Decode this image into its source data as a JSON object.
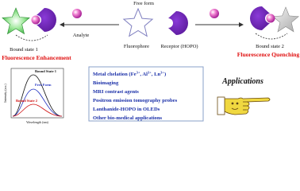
{
  "header": {
    "free_form": "Free form",
    "analyte": "Analyte",
    "fluorophore": "Fluorophore",
    "receptor": "Receptor (HOPO)"
  },
  "bound_state_1": {
    "label": "Bound state 1",
    "effect": "Fluorescence Enhancement"
  },
  "bound_state_2": {
    "label": "Bound state 2",
    "effect": "Fluorescence Quenching"
  },
  "spectra": {
    "curves": [
      "Bound State 1",
      "Free Form",
      "Bound State 2"
    ],
    "x_label": "Wavelength (nm)",
    "y_label": "Intensity (a.u.)"
  },
  "applications": {
    "title": "Applications",
    "items": [
      [
        "Metal chelation (Fe",
        "3+",
        ", Al",
        "3+",
        ", Ln",
        "3+",
        ")"
      ],
      [
        "Bioimaging"
      ],
      [
        "MRI contrast agents"
      ],
      [
        "Positron emission tomography probes"
      ],
      [
        "Lanthanide-HOPO in OLEDs"
      ],
      [
        "Other bio-medical applications"
      ]
    ]
  }
}
